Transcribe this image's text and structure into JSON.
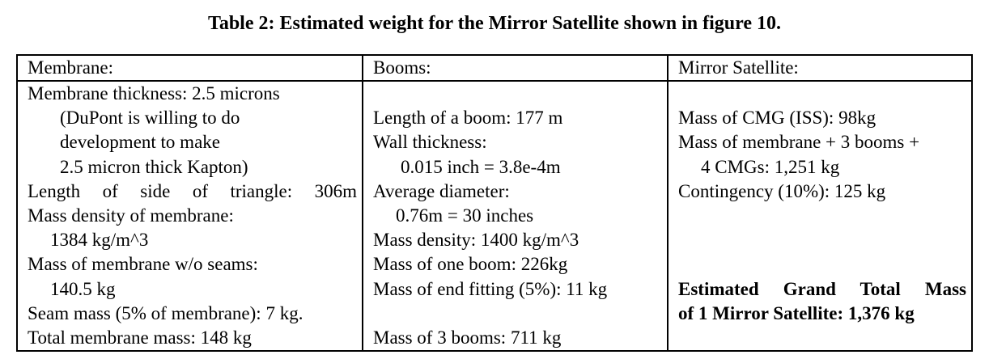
{
  "caption": "Table 2: Estimated weight for the Mirror Satellite shown in figure 10.",
  "headers": {
    "membrane": "Membrane:",
    "booms": "Booms:",
    "mirror": "Mirror Satellite:"
  },
  "membrane": {
    "thickness": "Membrane thickness: 2.5 microns",
    "dupont_1": "(DuPont is willing to do",
    "dupont_2": "development to make",
    "dupont_3": "2.5 micron thick Kapton)",
    "side_length": "Length of side of triangle: 306m",
    "density_label": "Mass density of membrane:",
    "density_value": "1384 kg/m^3",
    "mass_no_seams_label": "Mass of membrane w/o seams:",
    "mass_no_seams_value": "140.5 kg",
    "seam_mass": "Seam mass (5% of membrane): 7 kg.",
    "total_mass": "Total membrane mass: 148 kg"
  },
  "booms": {
    "length": "Length of a boom:  177 m",
    "wall_label": "Wall thickness:",
    "wall_value": "0.015 inch = 3.8e-4m",
    "diameter_label": "Average diameter:",
    "diameter_value": "0.76m = 30 inches",
    "density": "Mass density: 1400 kg/m^3",
    "mass_one": "Mass of one boom: 226kg",
    "end_fitting": "Mass of end fitting (5%): 11 kg",
    "mass_three": "Mass of 3 booms: 711 kg"
  },
  "mirror": {
    "cmg_mass": "Mass of CMG (ISS):  98kg",
    "membrane_booms_1": "Mass of membrane + 3 booms +",
    "membrane_booms_2": "4 CMGs: 1,251 kg",
    "contingency": "Contingency (10%): 125 kg",
    "grand_total_1": "Estimated Grand Total Mass",
    "grand_total_2": "of 1 Mirror Satellite: 1,376 kg"
  }
}
